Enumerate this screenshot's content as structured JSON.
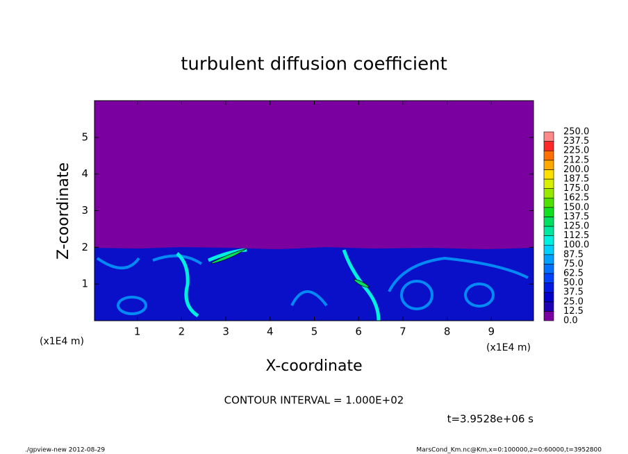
{
  "chart_data": {
    "type": "contour",
    "title": "turbulent diffusion coefficient",
    "xlabel": "X-coordinate",
    "ylabel": "Z-coordinate",
    "x_unit_label": "(x1E4 m)",
    "y_unit_label": "(x1E4 m)",
    "xlim": [
      0,
      10
    ],
    "ylim": [
      0,
      6
    ],
    "xticks": [
      1,
      2,
      3,
      4,
      5,
      6,
      7,
      8,
      9
    ],
    "yticks": [
      1,
      2,
      3,
      4,
      5
    ],
    "colorbar": {
      "levels": [
        {
          "value": 0,
          "label": "0.0"
        },
        12.5,
        {
          "value": 25,
          "label": "25.0"
        },
        37.5,
        {
          "value": 50,
          "label": "50.0"
        },
        62.5,
        {
          "value": 75,
          "label": "75.0"
        },
        87.5,
        {
          "value": 100,
          "label": "100.0"
        },
        112.5,
        {
          "value": 125,
          "label": "125.0"
        },
        137.5,
        {
          "value": 150,
          "label": "150.0"
        },
        162.5,
        {
          "value": 175,
          "label": "175.0"
        },
        187.5,
        {
          "value": 200,
          "label": "200.0"
        },
        212.5,
        {
          "value": 225,
          "label": "225.0"
        },
        237.5,
        {
          "value": 250,
          "label": "250.0"
        }
      ],
      "colors": [
        "#7a00a0",
        "#1e00b4",
        "#0000c8",
        "#0018e0",
        "#0040ff",
        "#0070ff",
        "#00a0ff",
        "#00d0ff",
        "#00f0e0",
        "#00e8a0",
        "#00e060",
        "#10e020",
        "#50e000",
        "#98e800",
        "#d8f000",
        "#ffe000",
        "#ffa800",
        "#ff7000",
        "#ff2828",
        "#ff8888"
      ]
    },
    "annotations": [
      "CONTOUR INTERVAL = 1.000E+02",
      "t=3.9528e+06 s"
    ],
    "footer_left": "./gpview-new  2012-08-29",
    "footer_right": "MarsCond_Km.nc@Km,x=0:100000,z=0:60000,t=3952800"
  }
}
